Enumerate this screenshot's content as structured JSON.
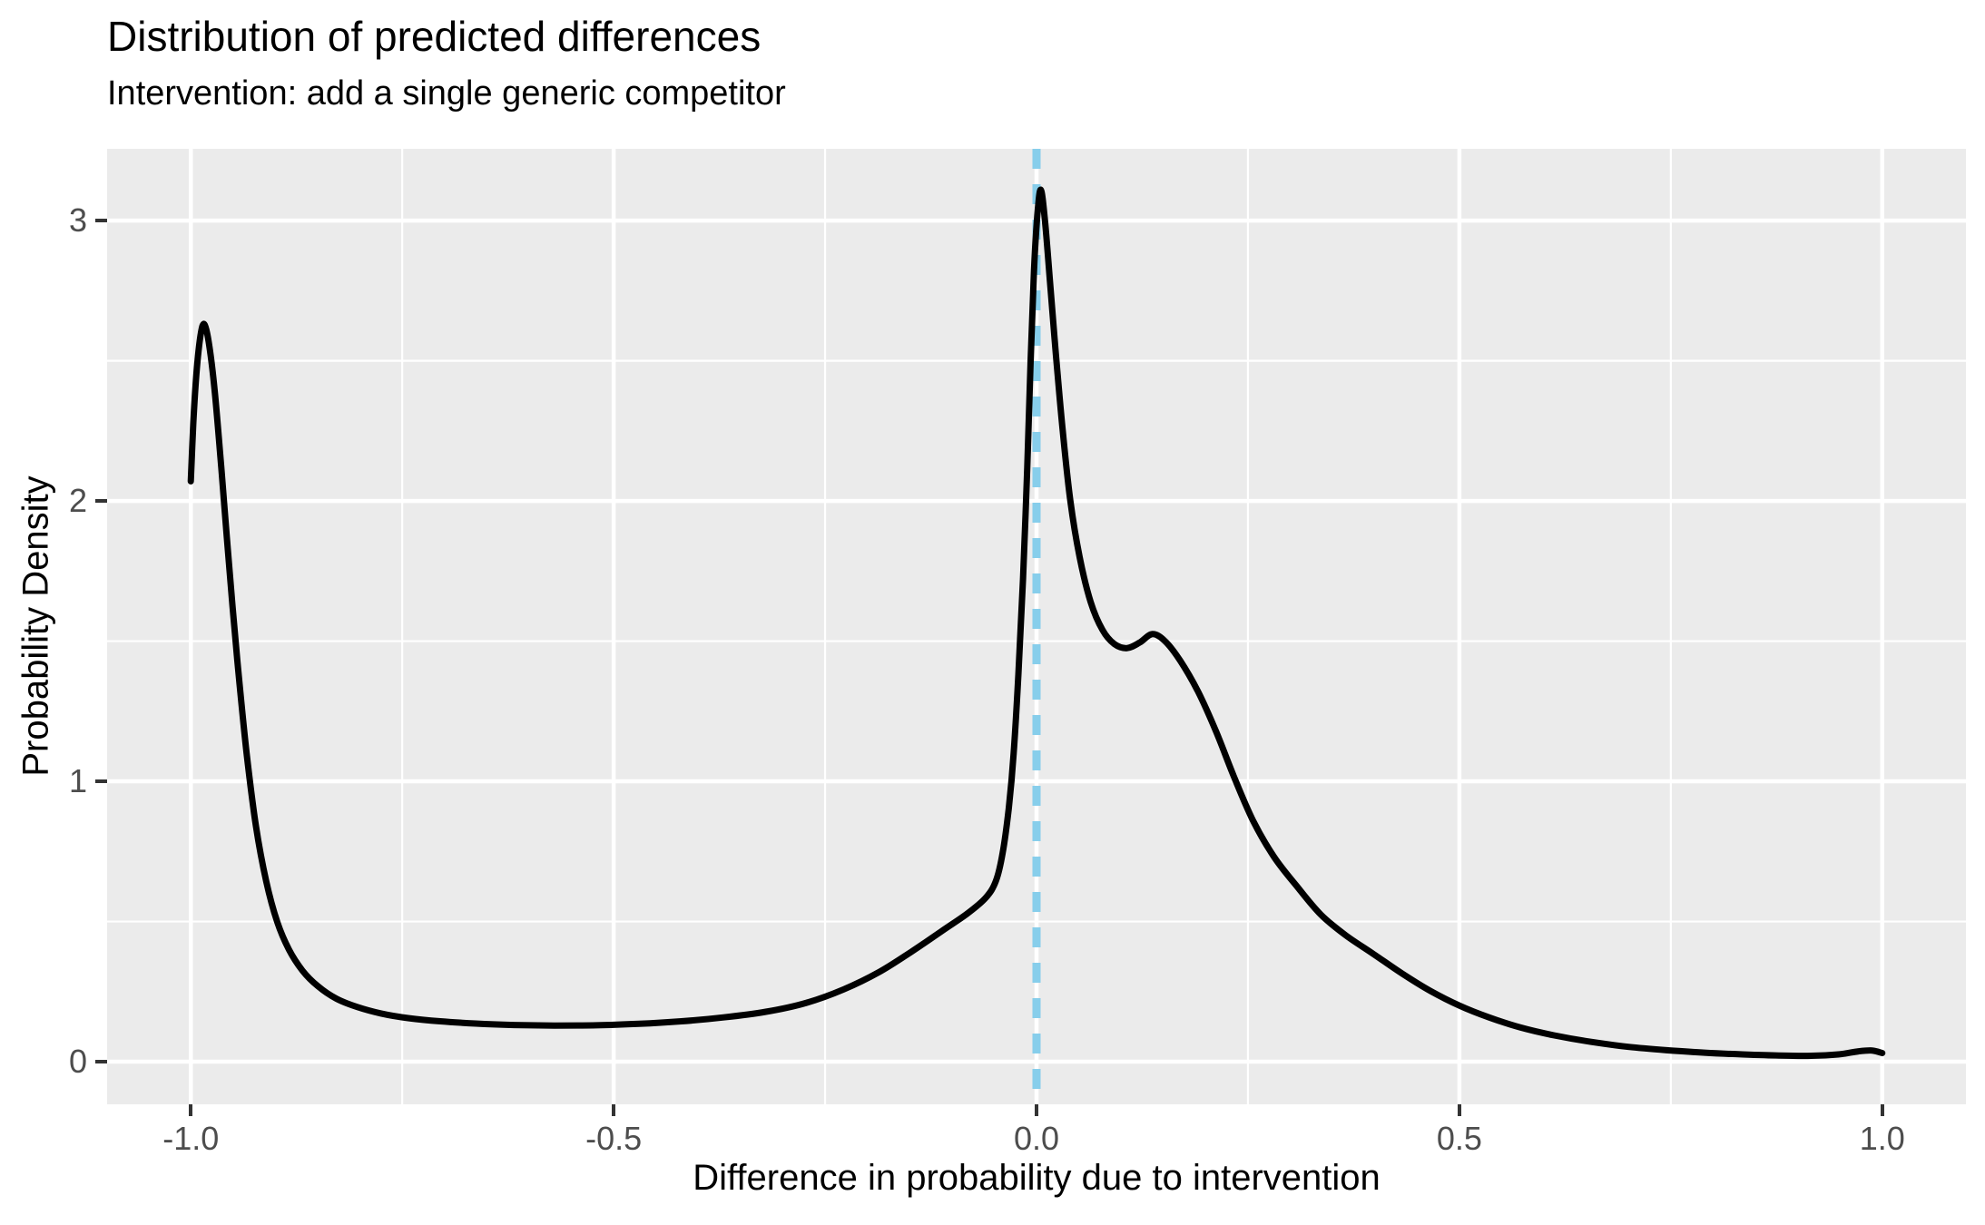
{
  "chart_data": {
    "type": "line",
    "subtype": "density",
    "title": "Distribution of predicted differences",
    "subtitle": "Intervention: add a single generic competitor",
    "xlabel": "Difference in probability due to intervention",
    "ylabel": "Probability Density",
    "xlim": [
      -1.099,
      1.099
    ],
    "ylim": [
      -0.152,
      3.256
    ],
    "grid": "on",
    "legend": "none",
    "x_ticks": [
      {
        "v": -1.0,
        "label": "-1.0"
      },
      {
        "v": -0.5,
        "label": "-0.5"
      },
      {
        "v": 0.0,
        "label": "0.0"
      },
      {
        "v": 0.5,
        "label": "0.5"
      },
      {
        "v": 1.0,
        "label": "1.0"
      }
    ],
    "y_ticks": [
      {
        "v": 0,
        "label": "0"
      },
      {
        "v": 1,
        "label": "1"
      },
      {
        "v": 2,
        "label": "2"
      },
      {
        "v": 3,
        "label": "3"
      }
    ],
    "x_minor": [
      -0.75,
      -0.25,
      0.25,
      0.75
    ],
    "y_minor": [
      0.5,
      1.5,
      2.5
    ],
    "reference_line": {
      "x": 0.0,
      "orientation": "vertical",
      "linetype": "dashed",
      "color": "#87CEEB"
    },
    "series": [
      {
        "name": "density of predicted differences",
        "color": "#000000",
        "points": [
          [
            -1.0,
            2.07
          ],
          [
            -0.997,
            2.28
          ],
          [
            -0.993,
            2.47
          ],
          [
            -0.988,
            2.6
          ],
          [
            -0.984,
            2.63
          ],
          [
            -0.979,
            2.57
          ],
          [
            -0.972,
            2.4
          ],
          [
            -0.964,
            2.12
          ],
          [
            -0.955,
            1.78
          ],
          [
            -0.945,
            1.43
          ],
          [
            -0.934,
            1.1
          ],
          [
            -0.923,
            0.84
          ],
          [
            -0.911,
            0.645
          ],
          [
            -0.898,
            0.5
          ],
          [
            -0.884,
            0.4
          ],
          [
            -0.868,
            0.325
          ],
          [
            -0.85,
            0.27
          ],
          [
            -0.828,
            0.225
          ],
          [
            -0.803,
            0.195
          ],
          [
            -0.775,
            0.172
          ],
          [
            -0.742,
            0.155
          ],
          [
            -0.705,
            0.144
          ],
          [
            -0.663,
            0.136
          ],
          [
            -0.618,
            0.131
          ],
          [
            -0.57,
            0.129
          ],
          [
            -0.52,
            0.13
          ],
          [
            -0.47,
            0.135
          ],
          [
            -0.42,
            0.144
          ],
          [
            -0.37,
            0.158
          ],
          [
            -0.32,
            0.178
          ],
          [
            -0.272,
            0.21
          ],
          [
            -0.228,
            0.258
          ],
          [
            -0.186,
            0.32
          ],
          [
            -0.148,
            0.392
          ],
          [
            -0.112,
            0.466
          ],
          [
            -0.082,
            0.528
          ],
          [
            -0.06,
            0.585
          ],
          [
            -0.048,
            0.645
          ],
          [
            -0.04,
            0.745
          ],
          [
            -0.033,
            0.9
          ],
          [
            -0.027,
            1.1
          ],
          [
            -0.0215,
            1.38
          ],
          [
            -0.016,
            1.72
          ],
          [
            -0.011,
            2.12
          ],
          [
            -0.007,
            2.5
          ],
          [
            -0.003,
            2.82
          ],
          [
            0.001,
            3.02
          ],
          [
            0.005,
            3.11
          ],
          [
            0.01,
            3.0
          ],
          [
            0.016,
            2.78
          ],
          [
            0.023,
            2.52
          ],
          [
            0.031,
            2.25
          ],
          [
            0.04,
            2.0
          ],
          [
            0.051,
            1.8
          ],
          [
            0.064,
            1.64
          ],
          [
            0.078,
            1.54
          ],
          [
            0.092,
            1.49
          ],
          [
            0.107,
            1.475
          ],
          [
            0.122,
            1.495
          ],
          [
            0.137,
            1.525
          ],
          [
            0.152,
            1.5
          ],
          [
            0.17,
            1.43
          ],
          [
            0.191,
            1.32
          ],
          [
            0.212,
            1.18
          ],
          [
            0.233,
            1.02
          ],
          [
            0.256,
            0.86
          ],
          [
            0.281,
            0.73
          ],
          [
            0.308,
            0.625
          ],
          [
            0.336,
            0.525
          ],
          [
            0.366,
            0.45
          ],
          [
            0.398,
            0.385
          ],
          [
            0.432,
            0.315
          ],
          [
            0.466,
            0.252
          ],
          [
            0.5,
            0.2
          ],
          [
            0.535,
            0.158
          ],
          [
            0.572,
            0.122
          ],
          [
            0.612,
            0.094
          ],
          [
            0.655,
            0.071
          ],
          [
            0.7,
            0.053
          ],
          [
            0.745,
            0.041
          ],
          [
            0.79,
            0.032
          ],
          [
            0.835,
            0.026
          ],
          [
            0.878,
            0.022
          ],
          [
            0.916,
            0.021
          ],
          [
            0.948,
            0.026
          ],
          [
            0.972,
            0.037
          ],
          [
            0.988,
            0.04
          ],
          [
            1.0,
            0.031
          ]
        ]
      }
    ],
    "style": {
      "panel_bg": "#EBEBEB",
      "grid_color": "#FFFFFF",
      "tick_color": "#333333",
      "tick_label_color": "#4D4D4D",
      "text_color": "#000000",
      "curve_width": 7,
      "refline_width": 9,
      "major_grid_width": 4.5,
      "minor_grid_width": 2.2,
      "refline_dash": "22 17"
    }
  }
}
